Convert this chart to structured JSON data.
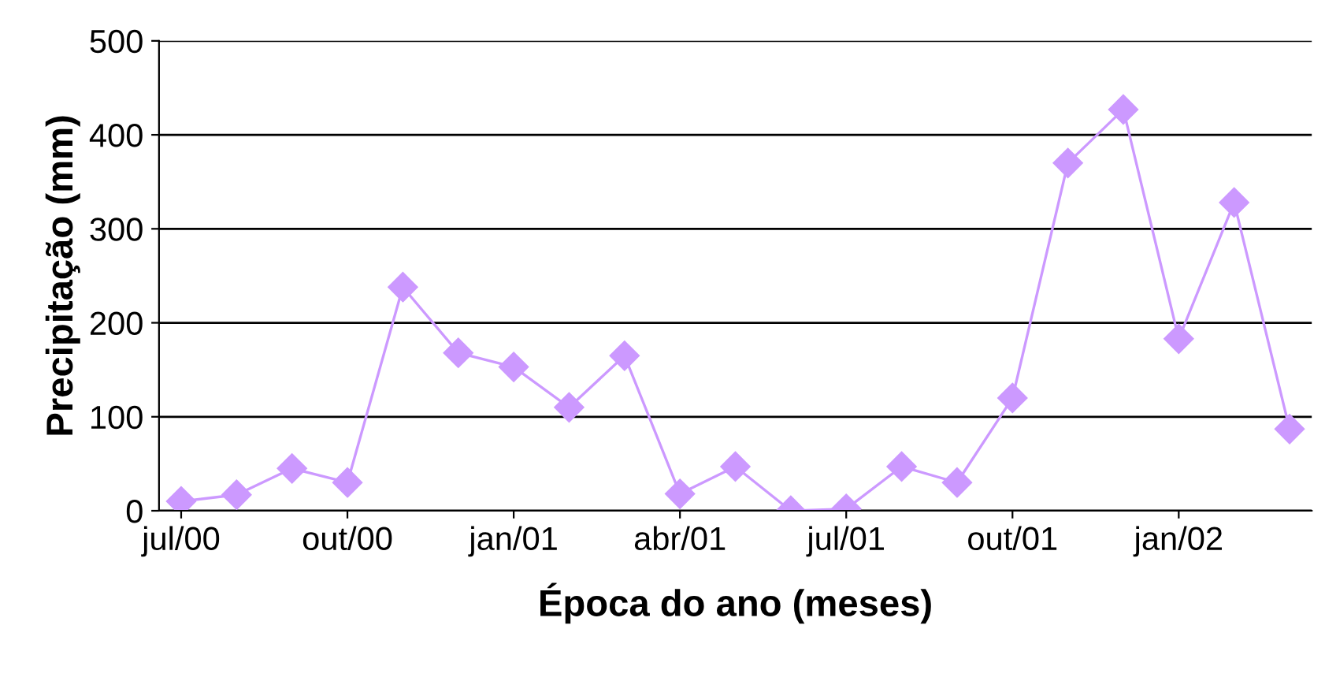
{
  "chart_data": {
    "type": "line",
    "xlabel": "Época do ano (meses)",
    "ylabel": "Precipitação (mm)",
    "categories": [
      "jul/00",
      null,
      null,
      "out/00",
      null,
      null,
      "jan/01",
      null,
      null,
      "abr/01",
      null,
      null,
      "jul/01",
      null,
      null,
      "out/01",
      null,
      null,
      "jan/02",
      null,
      null
    ],
    "series": [
      {
        "color": "#cc99ff",
        "values": [
          10,
          17,
          45,
          30,
          238,
          168,
          153,
          110,
          165,
          18,
          47,
          0,
          2,
          47,
          30,
          120,
          370,
          427,
          183,
          328,
          87
        ]
      }
    ],
    "ylim": [
      0,
      500
    ],
    "yticks": [
      0,
      100,
      200,
      300,
      400,
      500
    ],
    "grid": "y",
    "marker": "diamond",
    "line_style": "solid"
  }
}
